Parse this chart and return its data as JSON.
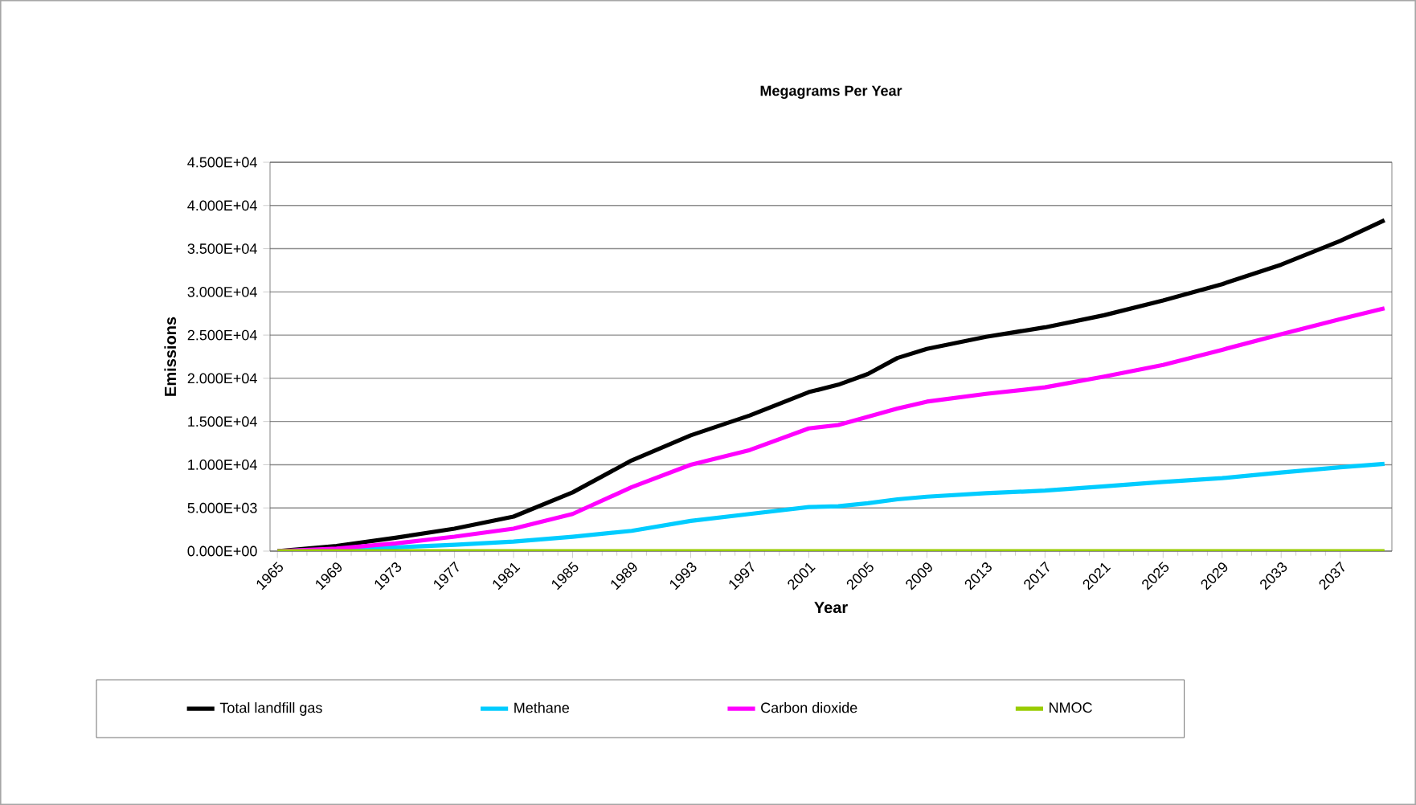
{
  "chart_data": {
    "type": "line",
    "title": "Megagrams Per Year",
    "xlabel": "Year",
    "ylabel": "Emissions",
    "x": [
      1965,
      1969,
      1973,
      1977,
      1981,
      1985,
      1989,
      1993,
      1997,
      2001,
      2003,
      2005,
      2007,
      2009,
      2013,
      2017,
      2021,
      2025,
      2029,
      2033,
      2037,
      2040
    ],
    "series": [
      {
        "name": "Total landfill gas",
        "color": "#000000",
        "values": [
          0,
          600,
          1540,
          2600,
          4000,
          6800,
          10500,
          13400,
          15700,
          18400,
          19260,
          20500,
          22350,
          23400,
          24800,
          25900,
          27300,
          29000,
          30900,
          33150,
          35900,
          38300
        ]
      },
      {
        "name": "Methane",
        "color": "#00ccff",
        "values": [
          0,
          200,
          430,
          740,
          1100,
          1670,
          2350,
          3500,
          4300,
          5100,
          5200,
          5550,
          6000,
          6300,
          6700,
          7000,
          7500,
          8000,
          8450,
          9100,
          9700,
          10100
        ]
      },
      {
        "name": "Carbon dioxide",
        "color": "#ff00ff",
        "values": [
          0,
          300,
          900,
          1670,
          2600,
          4300,
          7400,
          10000,
          11700,
          14200,
          14600,
          15550,
          16500,
          17300,
          18200,
          18950,
          20200,
          21550,
          23300,
          25100,
          26850,
          28100
        ]
      },
      {
        "name": "NMOC",
        "color": "#99cc00",
        "values": [
          0,
          0,
          0,
          0,
          0,
          0,
          0,
          0,
          0,
          0,
          0,
          0,
          0,
          0,
          0,
          0,
          0,
          0,
          0,
          0,
          0,
          0
        ]
      }
    ],
    "xlim": [
      1964.5,
      2040.5
    ],
    "xticks": [
      1965,
      1969,
      1973,
      1977,
      1981,
      1985,
      1989,
      1993,
      1997,
      2001,
      2005,
      2009,
      2013,
      2017,
      2021,
      2025,
      2029,
      2033,
      2037
    ],
    "ylim": [
      0,
      45000
    ],
    "yticks": [
      {
        "value": 0,
        "label": "0.000E+00"
      },
      {
        "value": 5000,
        "label": "5.000E+03"
      },
      {
        "value": 10000,
        "label": "1.000E+04"
      },
      {
        "value": 15000,
        "label": "1.500E+04"
      },
      {
        "value": 20000,
        "label": "2.000E+04"
      },
      {
        "value": 25000,
        "label": "2.500E+04"
      },
      {
        "value": 30000,
        "label": "3.000E+04"
      },
      {
        "value": 35000,
        "label": "3.500E+04"
      },
      {
        "value": 40000,
        "label": "4.000E+04"
      },
      {
        "value": 45000,
        "label": "4.500E+04"
      }
    ],
    "grid": "y",
    "legend": "bottom",
    "marker": "none",
    "line_style": "solid"
  }
}
